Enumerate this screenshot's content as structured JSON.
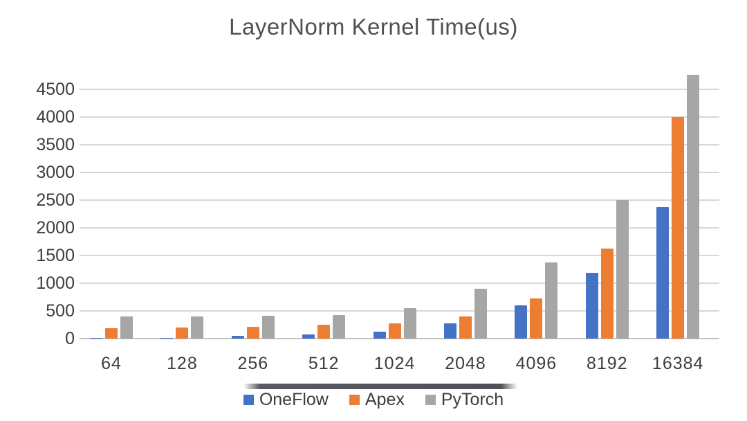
{
  "chart_data": {
    "type": "bar",
    "title": "LayerNorm Kernel Time(us)",
    "xlabel": "",
    "ylabel": "",
    "categories": [
      "64",
      "128",
      "256",
      "512",
      "1024",
      "2048",
      "4096",
      "8192",
      "16384"
    ],
    "series": [
      {
        "name": "OneFlow",
        "color": "#4472C4",
        "values": [
          10,
          15,
          55,
          70,
          120,
          280,
          600,
          1190,
          2370
        ]
      },
      {
        "name": "Apex",
        "color": "#ED7D31",
        "values": [
          190,
          200,
          210,
          250,
          280,
          400,
          720,
          1620,
          4000
        ]
      },
      {
        "name": "PyTorch",
        "color": "#A6A6A6",
        "values": [
          400,
          400,
          410,
          430,
          550,
          900,
          1380,
          2500,
          4760
        ]
      }
    ],
    "y_ticks": [
      0,
      500,
      1000,
      1500,
      2000,
      2500,
      3000,
      3500,
      4000,
      4500
    ],
    "ylim": [
      0,
      4500
    ],
    "grid": true,
    "legend_position": "bottom"
  },
  "colors": {
    "grid": "#d7d7d7",
    "axis_text": "#3d3d3d",
    "title_text": "#4f5052",
    "background": "#ffffff"
  }
}
